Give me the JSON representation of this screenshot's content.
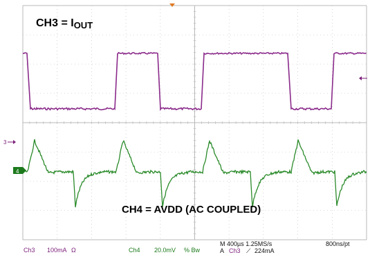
{
  "annotations": {
    "ch3_prefix": "CH3 = I",
    "ch3_sub": "OUT",
    "ch4": "CH4 = AVDD (AC COUPLED)"
  },
  "markers": {
    "ch3": "3",
    "ch4": "4"
  },
  "status_bar": {
    "ch3_label": "Ch3",
    "ch3_scale": "100mA",
    "ch3_ohm": "Ω",
    "ch4_label": "Ch4",
    "ch4_scale": "20.0mV",
    "ch4_mode": "% Bw",
    "timebase": "M 400µs 1.25MS/s",
    "resolution": "800ns/pt",
    "trigger_prefix": "A",
    "trigger_source": "Ch3",
    "trigger_slope": "⟋",
    "trigger_level": "224mA"
  },
  "colors": {
    "ch3_trace": "#8a2a8a",
    "ch4_trace": "#2a8a2a",
    "grid": "#b8b8b8",
    "marker_bg": "#1c7a1c"
  },
  "icons": {
    "trigger_marker": "triangle-down-orange",
    "ch3_level_marker": "arrow-left"
  }
}
